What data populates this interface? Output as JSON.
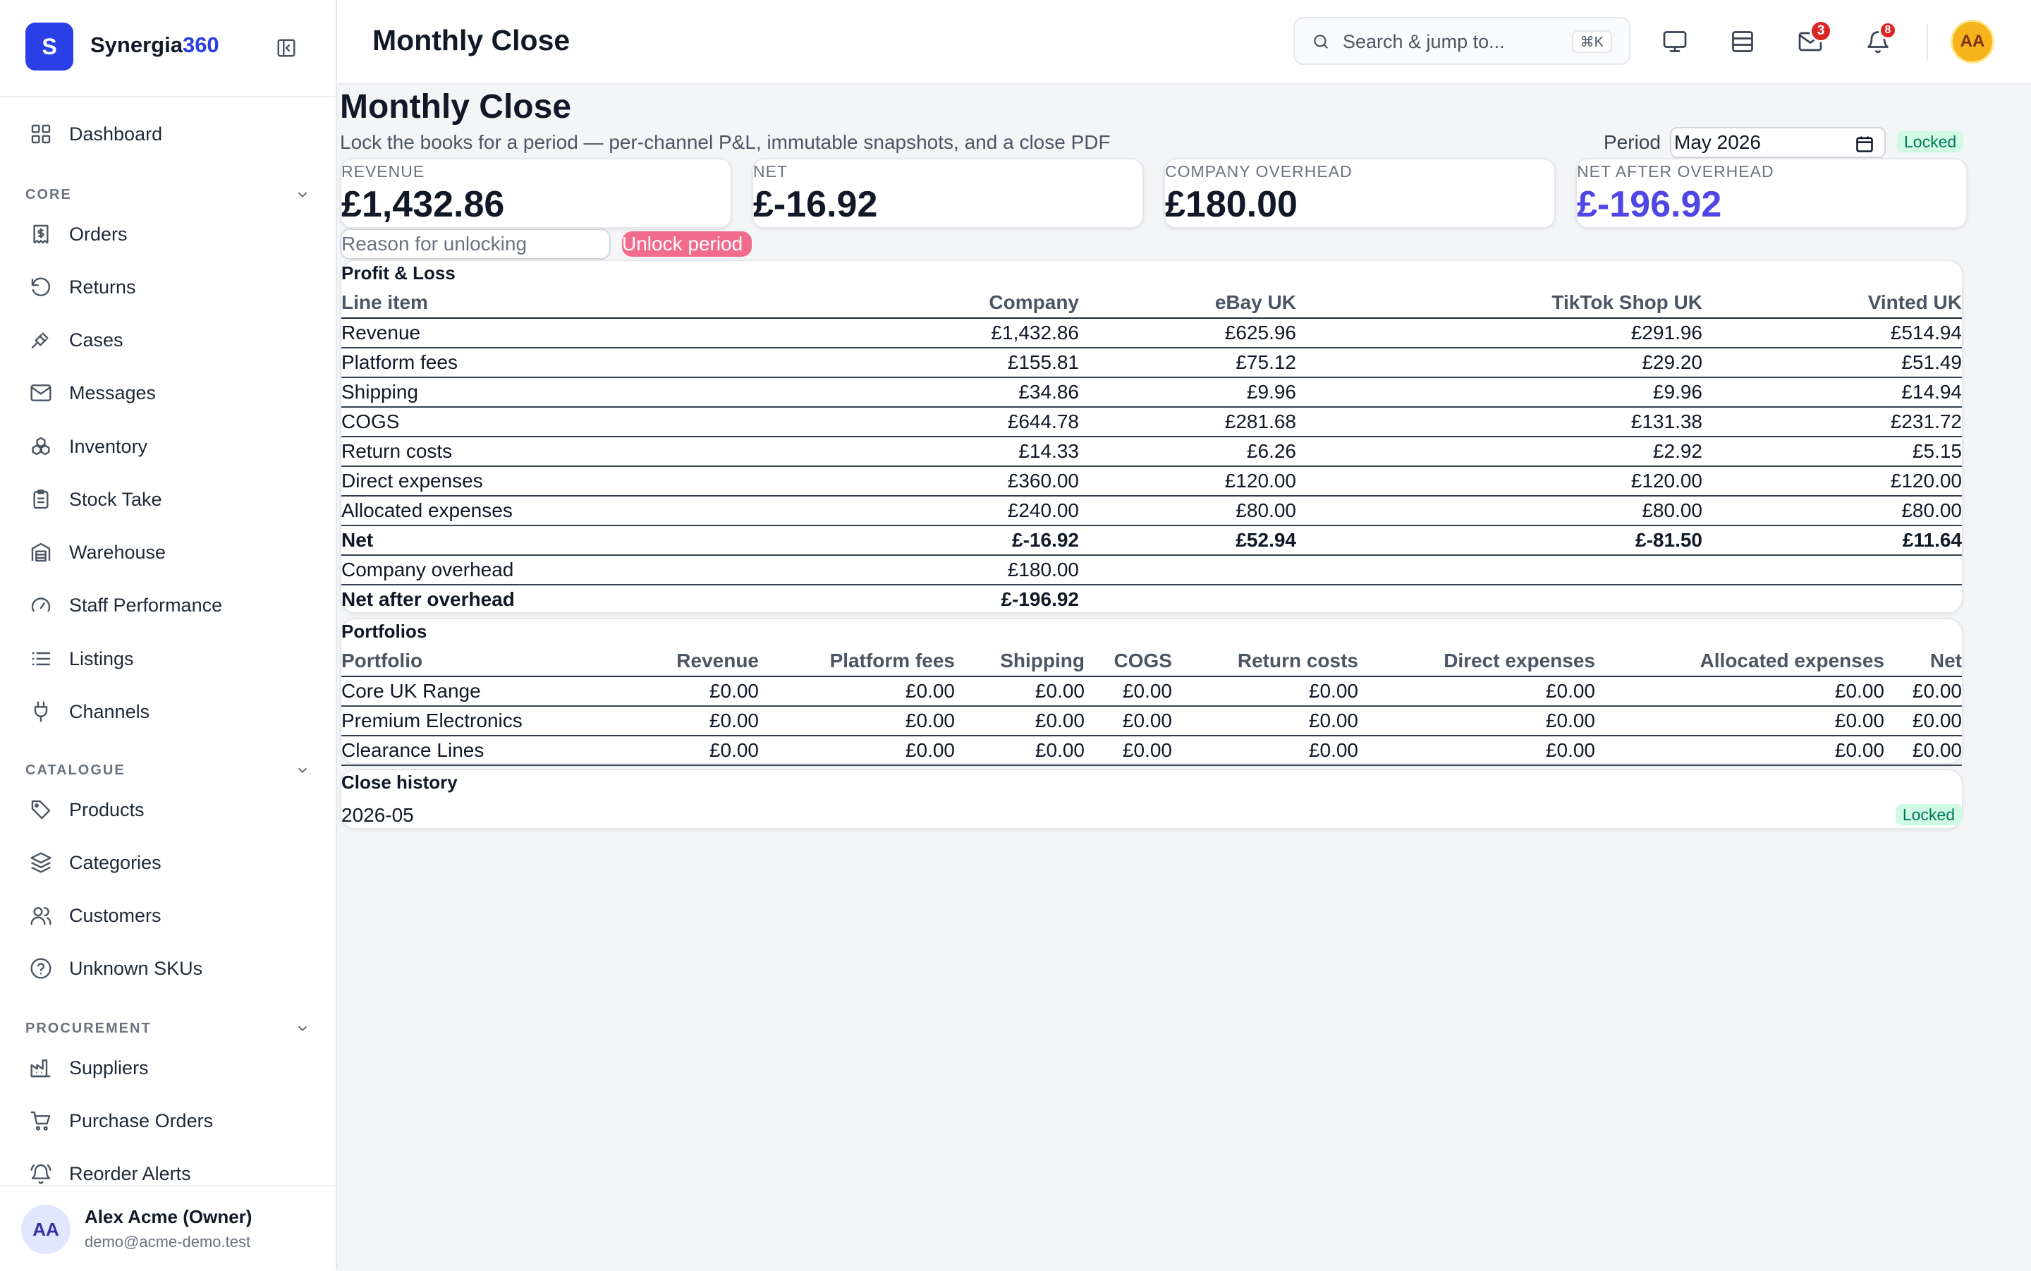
{
  "brand": {
    "letter": "S",
    "name_main": "Synergia",
    "name_accent": "360"
  },
  "sidebar": {
    "dashboard": "Dashboard",
    "sections": [
      {
        "title": "CORE",
        "items": [
          "Orders",
          "Returns",
          "Cases",
          "Messages",
          "Inventory",
          "Stock Take",
          "Warehouse",
          "Staff Performance",
          "Listings",
          "Channels"
        ]
      },
      {
        "title": "CATALOGUE",
        "items": [
          "Products",
          "Categories",
          "Customers",
          "Unknown SKUs"
        ]
      },
      {
        "title": "PROCUREMENT",
        "items": [
          "Suppliers",
          "Purchase Orders",
          "Reorder Alerts"
        ]
      }
    ]
  },
  "user": {
    "initials": "AA",
    "name": "Alex Acme (Owner)",
    "email": "demo@acme-demo.test"
  },
  "topbar": {
    "title": "Monthly Close",
    "search_placeholder": "Search & jump to...",
    "shortcut": "⌘K",
    "messages_badge": "3",
    "notifications_badge": "8",
    "avatar_initials": "AA"
  },
  "page": {
    "heading": "Monthly Close",
    "subtitle": "Lock the books for a period — per-channel P&L, immutable snapshots, and a close PDF",
    "period_label": "Period",
    "period_value": "May  2026",
    "status": "Locked"
  },
  "kpis": [
    {
      "label": "REVENUE",
      "value": "£1,432.86",
      "accent": false
    },
    {
      "label": "NET",
      "value": "£-16.92",
      "accent": false
    },
    {
      "label": "COMPANY OVERHEAD",
      "value": "£180.00",
      "accent": false
    },
    {
      "label": "NET AFTER OVERHEAD",
      "value": "£-196.92",
      "accent": true
    }
  ],
  "unlock": {
    "reason_placeholder": "Reason for unlocking",
    "button": "Unlock period"
  },
  "pnl": {
    "title": "Profit & Loss",
    "columns": [
      "Line item",
      "Company",
      "eBay UK",
      "TikTok Shop UK",
      "Vinted UK"
    ],
    "rows": [
      {
        "cells": [
          "Revenue",
          "£1,432.86",
          "£625.96",
          "£291.96",
          "£514.94"
        ],
        "bold": false
      },
      {
        "cells": [
          "Platform fees",
          "£155.81",
          "£75.12",
          "£29.20",
          "£51.49"
        ],
        "bold": false
      },
      {
        "cells": [
          "Shipping",
          "£34.86",
          "£9.96",
          "£9.96",
          "£14.94"
        ],
        "bold": false
      },
      {
        "cells": [
          "COGS",
          "£644.78",
          "£281.68",
          "£131.38",
          "£231.72"
        ],
        "bold": false
      },
      {
        "cells": [
          "Return costs",
          "£14.33",
          "£6.26",
          "£2.92",
          "£5.15"
        ],
        "bold": false
      },
      {
        "cells": [
          "Direct expenses",
          "£360.00",
          "£120.00",
          "£120.00",
          "£120.00"
        ],
        "bold": false
      },
      {
        "cells": [
          "Allocated expenses",
          "£240.00",
          "£80.00",
          "£80.00",
          "£80.00"
        ],
        "bold": false
      },
      {
        "cells": [
          "Net",
          "£-16.92",
          "£52.94",
          "£-81.50",
          "£11.64"
        ],
        "bold": true
      },
      {
        "cells": [
          "Company overhead",
          "£180.00",
          "",
          "",
          ""
        ],
        "bold": false
      },
      {
        "cells": [
          "Net after overhead",
          "£-196.92",
          "",
          "",
          ""
        ],
        "bold": true
      }
    ]
  },
  "portfolios": {
    "title": "Portfolios",
    "columns": [
      "Portfolio",
      "Revenue",
      "Platform fees",
      "Shipping",
      "COGS",
      "Return costs",
      "Direct expenses",
      "Allocated expenses",
      "Net"
    ],
    "rows": [
      [
        "Core UK Range",
        "£0.00",
        "£0.00",
        "£0.00",
        "£0.00",
        "£0.00",
        "£0.00",
        "£0.00",
        "£0.00"
      ],
      [
        "Premium Electronics",
        "£0.00",
        "£0.00",
        "£0.00",
        "£0.00",
        "£0.00",
        "£0.00",
        "£0.00",
        "£0.00"
      ],
      [
        "Clearance Lines",
        "£0.00",
        "£0.00",
        "£0.00",
        "£0.00",
        "£0.00",
        "£0.00",
        "£0.00",
        "£0.00"
      ]
    ]
  },
  "history": {
    "title": "Close history",
    "rows": [
      {
        "period": "2026-05",
        "status": "Locked"
      }
    ]
  },
  "icons": {
    "dashboard": "grid-icon",
    "orders": "receipt-icon",
    "returns": "rotate-ccw-icon",
    "cases": "gavel-icon",
    "messages": "mail-icon",
    "inventory": "boxes-icon",
    "stock_take": "clipboard-icon",
    "warehouse": "warehouse-icon",
    "staff_performance": "gauge-icon",
    "listings": "list-icon",
    "channels": "plug-icon",
    "products": "tag-icon",
    "categories": "layers-icon",
    "customers": "users-icon",
    "unknown_skus": "help-circle-icon",
    "suppliers": "factory-icon",
    "purchase_orders": "cart-icon",
    "reorder_alerts": "bell-ring-icon"
  },
  "colors": {
    "brand": "#2b3fe6",
    "accent_negative": "#4f46e5",
    "locked_bg": "#d1fae5",
    "locked_text": "#047857",
    "unlock_button": "#f06b8c"
  }
}
